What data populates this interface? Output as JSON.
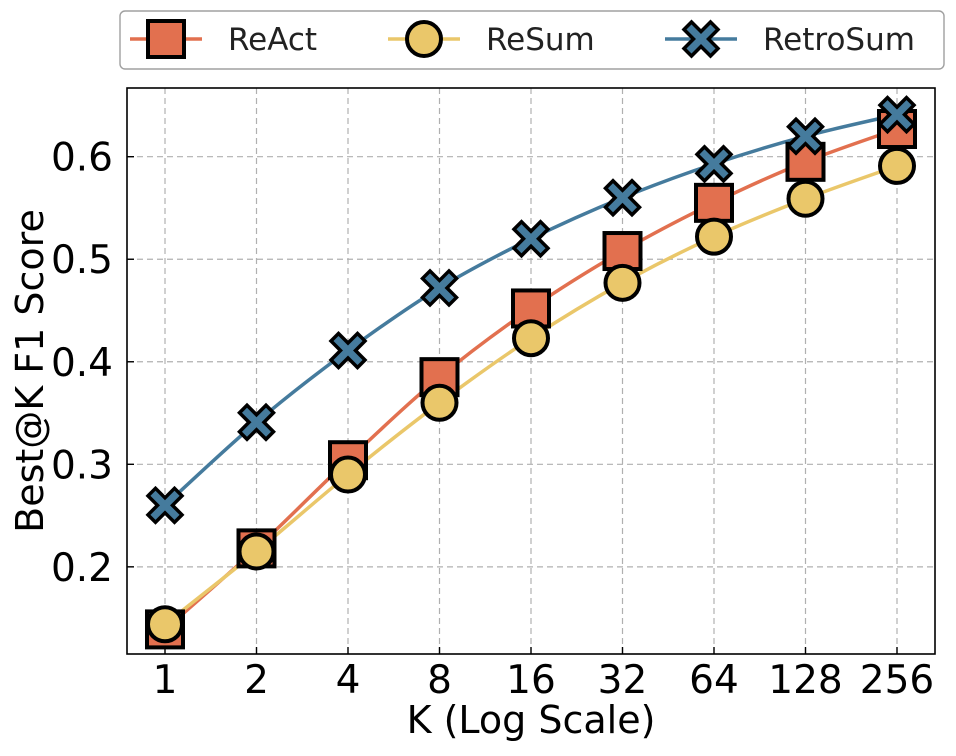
{
  "chart_data": {
    "type": "line",
    "title": "",
    "xlabel": "K (Log Scale)",
    "ylabel": "Best@K F1 Score",
    "categories": [
      "1",
      "2",
      "4",
      "8",
      "16",
      "32",
      "64",
      "128",
      "256"
    ],
    "ylim": [
      0.115,
      0.667
    ],
    "yticks": [
      "0.2",
      "0.3",
      "0.4",
      "0.5",
      "0.6"
    ],
    "grid": true,
    "legend_position": "top, outside plot",
    "series": [
      {
        "name": "ReAct",
        "marker": "square",
        "color": "#E2704F",
        "values": [
          0.139,
          0.218,
          0.304,
          0.385,
          0.452,
          0.508,
          0.555,
          0.595,
          0.627
        ]
      },
      {
        "name": "ReSum",
        "marker": "circle",
        "color": "#EAC76A",
        "values": [
          0.144,
          0.215,
          0.29,
          0.36,
          0.423,
          0.477,
          0.522,
          0.559,
          0.591
        ]
      },
      {
        "name": "RetroSum",
        "marker": "x",
        "color": "#457B9D",
        "values": [
          0.26,
          0.341,
          0.411,
          0.472,
          0.52,
          0.56,
          0.593,
          0.62,
          0.641
        ]
      }
    ]
  }
}
